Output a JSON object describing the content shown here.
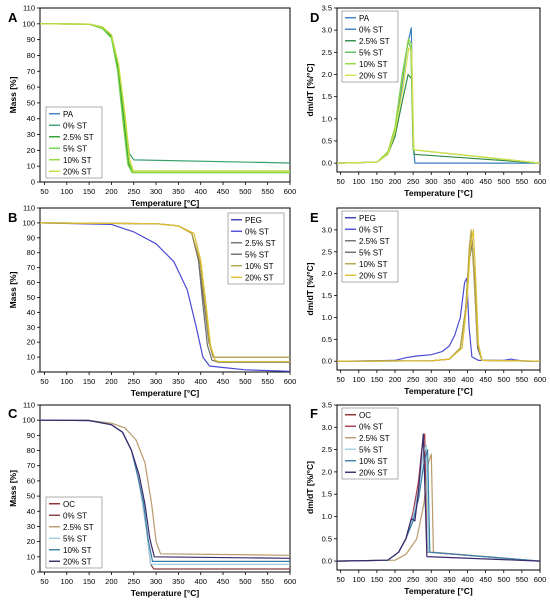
{
  "chart_data": [
    {
      "panel": "A",
      "type": "line",
      "xlabel": "Temperature [°C]",
      "ylabel": "Mass [%]",
      "xlim": [
        40,
        600
      ],
      "ylim": [
        0,
        110
      ],
      "xticks": [
        50,
        100,
        150,
        200,
        250,
        300,
        350,
        400,
        450,
        500,
        550,
        600
      ],
      "yticks": [
        0,
        10,
        20,
        30,
        40,
        50,
        60,
        70,
        80,
        90,
        100,
        110
      ],
      "legend_title": "PA",
      "legend_title_color": "#3a7fc1",
      "legend_placement": "bottom-left",
      "series": [
        {
          "name": "0% ST",
          "color": "#3aa06e",
          "x": [
            40,
            150,
            180,
            200,
            215,
            228,
            240,
            250,
            600
          ],
          "y": [
            100,
            99.8,
            98,
            93,
            75,
            45,
            18,
            14,
            12
          ]
        },
        {
          "name": "2.5% ST",
          "color": "#2e9e2e",
          "x": [
            40,
            150,
            180,
            200,
            215,
            228,
            238,
            246,
            600
          ],
          "y": [
            100,
            99.8,
            97,
            92,
            72,
            40,
            12,
            6,
            6
          ]
        },
        {
          "name": "5% ST",
          "color": "#6fd14a",
          "x": [
            40,
            150,
            180,
            200,
            214,
            226,
            237,
            246,
            600
          ],
          "y": [
            100,
            99.8,
            97,
            91,
            70,
            38,
            11,
            6,
            6
          ]
        },
        {
          "name": "10% ST",
          "color": "#8fd63e",
          "x": [
            40,
            150,
            180,
            200,
            216,
            229,
            240,
            248,
            600
          ],
          "y": [
            100,
            99.8,
            98,
            93,
            74,
            43,
            13,
            6,
            6
          ]
        },
        {
          "name": "20% ST",
          "color": "#c8dc3a",
          "x": [
            40,
            150,
            180,
            200,
            216,
            230,
            241,
            249,
            600
          ],
          "y": [
            100,
            99.8,
            98,
            93,
            74,
            44,
            14,
            7,
            7
          ]
        }
      ]
    },
    {
      "panel": "D",
      "type": "line",
      "xlabel": "Temperature [°C]",
      "ylabel": "dm/dT [%/°C]",
      "xlim": [
        40,
        600
      ],
      "ylim": [
        -0.2,
        3.5
      ],
      "xticks": [
        50,
        100,
        150,
        200,
        250,
        300,
        350,
        400,
        450,
        500,
        550,
        600
      ],
      "yticks": [
        0.0,
        0.5,
        1.0,
        1.5,
        2.0,
        2.5,
        3.0,
        3.5
      ],
      "legend_title": "PA",
      "legend_title_color": "#3a7fc1",
      "legend_placement": "top-left",
      "series": [
        {
          "name": "0% ST",
          "color": "#3a7fc1",
          "x": [
            40,
            150,
            180,
            200,
            220,
            235,
            245,
            250,
            255,
            600
          ],
          "y": [
            0,
            0.02,
            0.2,
            0.7,
            1.8,
            2.7,
            3.05,
            0.5,
            0,
            0
          ]
        },
        {
          "name": "2.5% ST",
          "color": "#2e8a4a",
          "x": [
            40,
            150,
            180,
            200,
            220,
            236,
            246,
            252,
            600
          ],
          "y": [
            0,
            0.02,
            0.2,
            0.6,
            1.4,
            2.0,
            1.9,
            0.2,
            0
          ]
        },
        {
          "name": "5% ST",
          "color": "#5cc05c",
          "x": [
            40,
            150,
            180,
            200,
            220,
            236,
            244,
            250,
            600
          ],
          "y": [
            0,
            0.02,
            0.25,
            0.8,
            2.0,
            2.75,
            2.6,
            0.3,
            0
          ]
        },
        {
          "name": "10% ST",
          "color": "#8fd63e",
          "x": [
            40,
            150,
            180,
            200,
            220,
            237,
            245,
            251,
            600
          ],
          "y": [
            0,
            0.02,
            0.25,
            0.8,
            1.9,
            2.8,
            2.7,
            0.3,
            0
          ]
        },
        {
          "name": "20% ST",
          "color": "#d6e04a",
          "x": [
            40,
            150,
            180,
            200,
            222,
            238,
            246,
            252,
            600
          ],
          "y": [
            0,
            0.02,
            0.2,
            0.7,
            1.7,
            2.6,
            2.5,
            0.3,
            0
          ]
        }
      ]
    },
    {
      "panel": "B",
      "type": "line",
      "xlabel": "Temperature [°C]",
      "ylabel": "Mass [%]",
      "xlim": [
        40,
        600
      ],
      "ylim": [
        0,
        110
      ],
      "xticks": [
        50,
        100,
        150,
        200,
        250,
        300,
        350,
        400,
        450,
        500,
        550,
        600
      ],
      "yticks": [
        0,
        10,
        20,
        30,
        40,
        50,
        60,
        70,
        80,
        90,
        100,
        110
      ],
      "legend_title": "PEG",
      "legend_title_color": "#3a3ab8",
      "legend_placement": "top-right",
      "series": [
        {
          "name": "0% ST",
          "color": "#4b4bd6",
          "x": [
            40,
            200,
            250,
            300,
            340,
            370,
            390,
            405,
            420,
            450,
            500,
            600
          ],
          "y": [
            100,
            99,
            94,
            86,
            74,
            55,
            30,
            10,
            4,
            3,
            1.5,
            0.5
          ]
        },
        {
          "name": "2.5% ST",
          "color": "#707070",
          "x": [
            40,
            300,
            350,
            380,
            395,
            405,
            415,
            425,
            440,
            600
          ],
          "y": [
            100,
            99.5,
            98,
            93,
            75,
            45,
            18,
            8,
            6.5,
            6.5
          ]
        },
        {
          "name": "5% ST",
          "color": "#6a6a6a",
          "x": [
            40,
            300,
            350,
            380,
            395,
            408,
            418,
            428,
            440,
            600
          ],
          "y": [
            100,
            99.5,
            98,
            93,
            75,
            45,
            20,
            10,
            10,
            10
          ]
        },
        {
          "name": "10% ST",
          "color": "#b5a44a",
          "x": [
            40,
            300,
            350,
            380,
            398,
            410,
            420,
            430,
            440,
            600
          ],
          "y": [
            100,
            99.5,
            98,
            93,
            75,
            45,
            18,
            10,
            10,
            10
          ]
        },
        {
          "name": "20% ST",
          "color": "#e0c030",
          "x": [
            40,
            300,
            350,
            385,
            400,
            412,
            422,
            432,
            440,
            600
          ],
          "y": [
            100,
            99.5,
            98,
            93,
            75,
            45,
            18,
            8,
            7,
            7
          ]
        }
      ]
    },
    {
      "panel": "E",
      "type": "line",
      "xlabel": "Temperature [°C]",
      "ylabel": "dm/dT [%/°C]",
      "xlim": [
        40,
        600
      ],
      "ylim": [
        -0.2,
        3.5
      ],
      "xticks": [
        50,
        100,
        150,
        200,
        250,
        300,
        350,
        400,
        450,
        500,
        550,
        600
      ],
      "yticks": [
        0.0,
        0.5,
        1.0,
        1.5,
        2.0,
        2.5,
        3.0
      ],
      "legend_title": "PEG",
      "legend_title_color": "#3a3ab8",
      "legend_placement": "top-left",
      "series": [
        {
          "name": "0% ST",
          "color": "#4b4bd6",
          "x": [
            40,
            200,
            230,
            260,
            300,
            330,
            350,
            365,
            380,
            392,
            398,
            404,
            412,
            430,
            500,
            520,
            530,
            560,
            600
          ],
          "y": [
            0,
            0.02,
            0.08,
            0.12,
            0.15,
            0.22,
            0.35,
            0.6,
            1.0,
            1.8,
            1.9,
            0.8,
            0.1,
            0.02,
            0.02,
            0.05,
            0.03,
            0,
            0
          ]
        },
        {
          "name": "2.5% ST",
          "color": "#707070",
          "x": [
            40,
            300,
            350,
            380,
            395,
            405,
            412,
            420,
            428,
            440,
            600
          ],
          "y": [
            0,
            0.01,
            0.05,
            0.3,
            1.2,
            2.4,
            2.85,
            1.6,
            0.3,
            0.02,
            0
          ]
        },
        {
          "name": "5% ST",
          "color": "#6a6a6a",
          "x": [
            40,
            300,
            350,
            380,
            395,
            405,
            413,
            420,
            428,
            440,
            600
          ],
          "y": [
            0,
            0.01,
            0.05,
            0.3,
            1.2,
            2.3,
            2.7,
            1.8,
            0.4,
            0.02,
            0
          ]
        },
        {
          "name": "10% ST",
          "color": "#b5a44a",
          "x": [
            40,
            300,
            350,
            380,
            395,
            405,
            410,
            418,
            428,
            440,
            600
          ],
          "y": [
            0,
            0.01,
            0.05,
            0.3,
            1.2,
            2.6,
            3.0,
            2.0,
            0.4,
            0.02,
            0
          ]
        },
        {
          "name": "20% ST",
          "color": "#e0c030",
          "x": [
            40,
            300,
            350,
            385,
            398,
            408,
            416,
            422,
            430,
            440,
            600
          ],
          "y": [
            0,
            0.01,
            0.05,
            0.3,
            1.3,
            2.6,
            3.0,
            2.0,
            0.4,
            0.02,
            0
          ]
        }
      ]
    },
    {
      "panel": "C",
      "type": "line",
      "xlabel": "Temperature [°C]",
      "ylabel": "Mass [%]",
      "xlim": [
        40,
        600
      ],
      "ylim": [
        0,
        110
      ],
      "xticks": [
        50,
        100,
        150,
        200,
        250,
        300,
        350,
        400,
        450,
        500,
        550,
        600
      ],
      "yticks": [
        0,
        10,
        20,
        30,
        40,
        50,
        60,
        70,
        80,
        90,
        100,
        110
      ],
      "legend_title": "OC",
      "legend_title_color": "#8a2a2a",
      "legend_placement": "bottom-left",
      "series": [
        {
          "name": "0% ST",
          "color": "#8b3a3a",
          "x": [
            40,
            150,
            200,
            225,
            245,
            260,
            270,
            280,
            288,
            295,
            600
          ],
          "y": [
            100,
            99.8,
            97,
            92,
            80,
            62,
            45,
            25,
            5,
            2,
            2
          ]
        },
        {
          "name": "2.5% ST",
          "color": "#b89a6a",
          "x": [
            40,
            150,
            200,
            230,
            255,
            275,
            290,
            300,
            310,
            600
          ],
          "y": [
            100,
            99.8,
            98,
            95,
            87,
            72,
            45,
            20,
            12,
            11
          ]
        },
        {
          "name": "5% ST",
          "color": "#9fd0e0",
          "x": [
            40,
            150,
            200,
            225,
            245,
            260,
            270,
            280,
            288,
            600
          ],
          "y": [
            100,
            99.8,
            97,
            92,
            80,
            62,
            45,
            25,
            5,
            5
          ]
        },
        {
          "name": "10% ST",
          "color": "#3a7fa8",
          "x": [
            40,
            150,
            200,
            225,
            245,
            260,
            272,
            282,
            292,
            600
          ],
          "y": [
            100,
            99.8,
            97,
            92,
            80,
            62,
            45,
            22,
            7,
            7
          ]
        },
        {
          "name": "20% ST",
          "color": "#3a2a6a",
          "x": [
            40,
            150,
            200,
            225,
            245,
            262,
            275,
            286,
            296,
            600
          ],
          "y": [
            100,
            99.8,
            97,
            92,
            80,
            64,
            45,
            22,
            10,
            9
          ]
        }
      ]
    },
    {
      "panel": "F",
      "type": "line",
      "xlabel": "Temperature [°C]",
      "ylabel": "dm/dT [%/°C]",
      "xlim": [
        40,
        600
      ],
      "ylim": [
        -0.2,
        3.5
      ],
      "xticks": [
        50,
        100,
        150,
        200,
        250,
        300,
        350,
        400,
        450,
        500,
        550,
        600
      ],
      "yticks": [
        0.0,
        0.5,
        1.0,
        1.5,
        2.0,
        2.5,
        3.0,
        3.5
      ],
      "legend_title": "OC",
      "legend_title_color": "#8a2a2a",
      "legend_placement": "top-left",
      "series": [
        {
          "name": "0% ST",
          "color": "#a33a4a",
          "x": [
            40,
            180,
            210,
            230,
            250,
            265,
            275,
            282,
            288,
            600
          ],
          "y": [
            0,
            0.02,
            0.2,
            0.5,
            1.1,
            1.8,
            2.6,
            2.85,
            0.2,
            0
          ]
        },
        {
          "name": "2.5% ST",
          "color": "#b89a6a",
          "x": [
            40,
            200,
            230,
            260,
            280,
            292,
            300,
            306,
            600
          ],
          "y": [
            0,
            0.02,
            0.15,
            0.5,
            1.3,
            2.2,
            2.4,
            0.2,
            0
          ]
        },
        {
          "name": "5% ST",
          "color": "#9fd0e0",
          "x": [
            40,
            180,
            210,
            230,
            250,
            265,
            278,
            286,
            292,
            600
          ],
          "y": [
            0,
            0.02,
            0.2,
            0.5,
            1.0,
            1.6,
            2.4,
            2.6,
            0.2,
            0
          ]
        },
        {
          "name": "10% ST",
          "color": "#3a7fa8",
          "x": [
            40,
            180,
            210,
            230,
            250,
            265,
            280,
            290,
            296,
            600
          ],
          "y": [
            0,
            0.02,
            0.2,
            0.5,
            0.9,
            1.4,
            2.2,
            2.5,
            0.2,
            0
          ]
        },
        {
          "name": "20% ST",
          "color": "#3a2a6a",
          "x": [
            40,
            180,
            210,
            230,
            245,
            255,
            265,
            278,
            288,
            600
          ],
          "y": [
            0,
            0.02,
            0.2,
            0.5,
            0.95,
            0.9,
            1.6,
            2.85,
            0.1,
            0
          ]
        }
      ]
    }
  ],
  "panel_labels": [
    "A",
    "D",
    "B",
    "E",
    "C",
    "F"
  ]
}
